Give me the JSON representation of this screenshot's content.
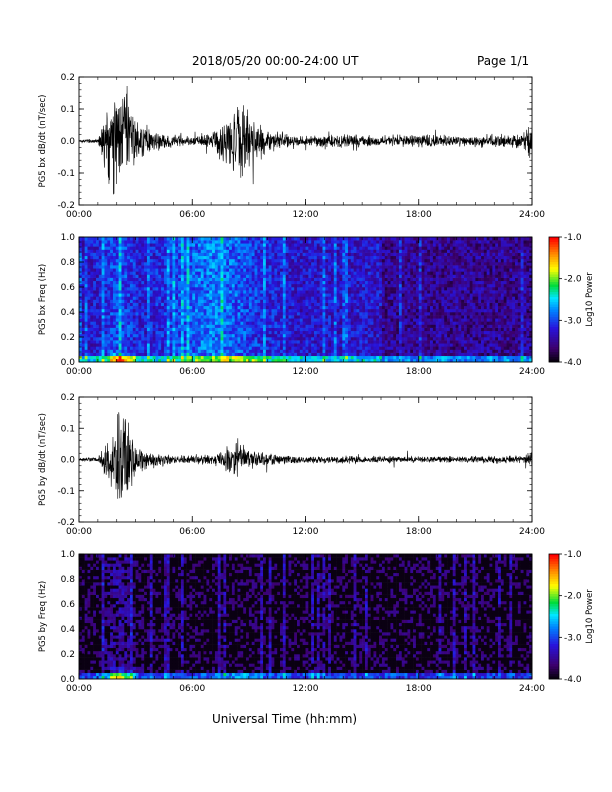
{
  "header": {
    "title": "2018/05/20  00:00-24:00 UT",
    "page": "Page 1/1"
  },
  "xaxis_label": "Universal Time (hh:mm)",
  "colorbar": {
    "label": "Log10 Power",
    "ticks": [
      "-1.0",
      "-2.0",
      "-3.0",
      "-4.0"
    ],
    "range": [
      -4.0,
      -1.0
    ]
  },
  "chart_data": [
    {
      "type": "line",
      "ylabel": "PG5 bx dB/dt (nT/sec)",
      "ylim": [
        -0.2,
        0.2
      ],
      "yticks": [
        "0.2",
        "0.1",
        "0.0",
        "-0.1",
        "-0.2"
      ],
      "xlim": [
        "00:00",
        "24:00"
      ],
      "xticks": [
        "00:00",
        "06:00",
        "12:00",
        "18:00",
        "24:00"
      ],
      "envelope_hours": [
        0,
        1,
        1.5,
        2,
        2.5,
        3,
        4,
        5,
        6,
        7,
        8,
        8.5,
        9,
        10,
        12,
        14,
        16,
        18,
        20,
        22,
        23.5,
        24
      ],
      "envelope_amplitude": [
        0.005,
        0.01,
        0.15,
        0.2,
        0.2,
        0.08,
        0.04,
        0.02,
        0.02,
        0.03,
        0.1,
        0.15,
        0.1,
        0.04,
        0.02,
        0.025,
        0.02,
        0.025,
        0.02,
        0.025,
        0.03,
        0.06
      ]
    },
    {
      "type": "heatmap",
      "ylabel": "PG5 bx Freq (Hz)",
      "ylim": [
        0.0,
        1.0
      ],
      "yticks": [
        "1.0",
        "0.8",
        "0.6",
        "0.4",
        "0.2",
        "0.0"
      ],
      "xlim": [
        "00:00",
        "24:00"
      ],
      "xticks": [
        "00:00",
        "06:00",
        "12:00",
        "18:00",
        "24:00"
      ]
    },
    {
      "type": "line",
      "ylabel": "PG5 by dB/dt (nT/sec)",
      "ylim": [
        -0.2,
        0.2
      ],
      "yticks": [
        "0.2",
        "0.1",
        "0.0",
        "-0.1",
        "-0.2"
      ],
      "xlim": [
        "00:00",
        "24:00"
      ],
      "xticks": [
        "00:00",
        "06:00",
        "12:00",
        "18:00",
        "24:00"
      ],
      "envelope_hours": [
        0,
        1,
        1.5,
        2,
        2.5,
        3,
        4,
        5,
        6,
        7,
        8,
        8.5,
        9,
        10,
        12,
        14,
        16,
        18,
        20,
        22,
        23.5,
        24
      ],
      "envelope_amplitude": [
        0.005,
        0.008,
        0.08,
        0.15,
        0.2,
        0.06,
        0.03,
        0.015,
        0.015,
        0.02,
        0.05,
        0.07,
        0.04,
        0.02,
        0.012,
        0.015,
        0.012,
        0.012,
        0.012,
        0.015,
        0.015,
        0.03
      ]
    },
    {
      "type": "heatmap",
      "ylabel": "PG5 by Freq (Hz)",
      "ylim": [
        0.0,
        1.0
      ],
      "yticks": [
        "1.0",
        "0.8",
        "0.6",
        "0.4",
        "0.2",
        "0.0"
      ],
      "xlim": [
        "00:00",
        "24:00"
      ],
      "xticks": [
        "00:00",
        "06:00",
        "12:00",
        "18:00",
        "24:00"
      ]
    }
  ]
}
